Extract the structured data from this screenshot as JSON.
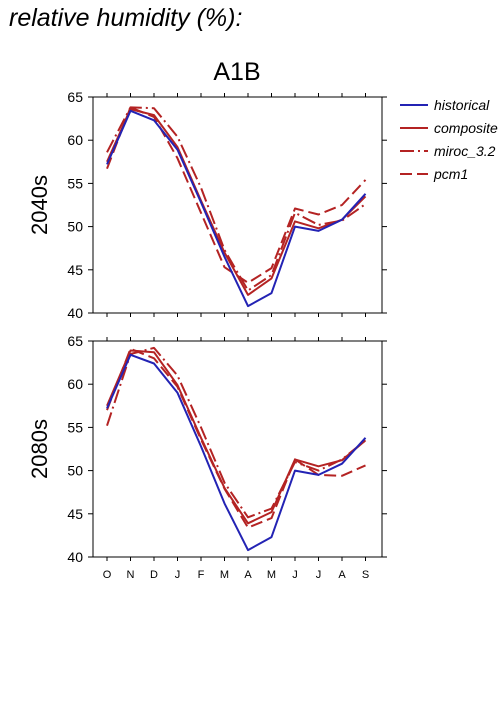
{
  "page": {
    "title": "relative humidity (%):"
  },
  "colors": {
    "historical": "#2323b4",
    "scenario": "#b42323",
    "axis": "#000000",
    "background": "#ffffff"
  },
  "chart_data": {
    "type": "line",
    "title": "A1B",
    "categories": [
      "O",
      "N",
      "D",
      "J",
      "F",
      "M",
      "A",
      "M",
      "J",
      "J",
      "A",
      "S"
    ],
    "ylim": [
      40,
      65
    ],
    "yticks": [
      40,
      45,
      50,
      55,
      60,
      65
    ],
    "grid": false,
    "legend_position": "right",
    "legend": [
      {
        "name": "historical",
        "style": "solid",
        "color": "#2323b4"
      },
      {
        "name": "composite",
        "style": "solid",
        "color": "#b42323"
      },
      {
        "name": "miroc_3.2",
        "style": "dashdot",
        "color": "#b42323"
      },
      {
        "name": "pcm1",
        "style": "dashed",
        "color": "#b42323"
      }
    ],
    "panels": [
      {
        "label": "2040s",
        "series": [
          {
            "name": "historical",
            "values": [
              57.2,
              63.4,
              62.3,
              58.9,
              52.8,
              46.5,
              40.8,
              42.3,
              50.0,
              49.5,
              50.8,
              53.8
            ]
          },
          {
            "name": "composite",
            "values": [
              57.5,
              63.6,
              62.9,
              59.2,
              53.0,
              47.0,
              42.1,
              44.0,
              50.6,
              49.8,
              50.8,
              53.5
            ]
          },
          {
            "name": "miroc_3.2",
            "values": [
              58.6,
              63.8,
              63.7,
              60.4,
              54.5,
              47.3,
              42.6,
              44.4,
              51.6,
              50.2,
              50.7,
              52.6
            ]
          },
          {
            "name": "pcm1",
            "values": [
              56.7,
              63.8,
              62.7,
              57.9,
              51.6,
              45.3,
              43.5,
              45.2,
              52.1,
              51.4,
              52.5,
              55.4
            ]
          }
        ]
      },
      {
        "label": "2080s",
        "series": [
          {
            "name": "historical",
            "values": [
              57.2,
              63.4,
              62.4,
              59.0,
              52.8,
              46.2,
              40.8,
              42.3,
              50.0,
              49.5,
              50.8,
              53.8
            ]
          },
          {
            "name": "composite",
            "values": [
              57.5,
              63.9,
              63.7,
              59.9,
              53.8,
              48.0,
              43.9,
              45.2,
              51.3,
              50.5,
              51.2,
              53.5
            ]
          },
          {
            "name": "miroc_3.2",
            "values": [
              55.2,
              63.5,
              64.2,
              61.0,
              55.0,
              48.6,
              44.6,
              45.6,
              51.0,
              50.0,
              51.3,
              53.5
            ]
          },
          {
            "name": "pcm1",
            "values": [
              57.0,
              64.1,
              63.0,
              59.7,
              53.6,
              47.9,
              43.4,
              44.5,
              51.3,
              49.5,
              49.4,
              50.6
            ]
          }
        ]
      }
    ]
  }
}
